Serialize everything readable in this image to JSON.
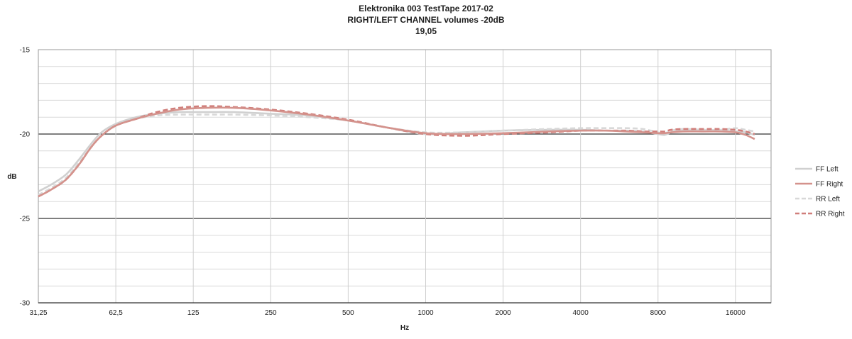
{
  "chart_data": {
    "type": "line",
    "title": "Elektronika 003 TestTape 2017-02",
    "subtitle": "RIGHT/LEFT CHANNEL volumes -20dB",
    "subtitle2": "19,05",
    "xlabel": "Hz",
    "ylabel": "dB",
    "x_scale": "log2",
    "xlim": [
      31.25,
      22000
    ],
    "ylim": [
      -30,
      -15
    ],
    "x_ticks": [
      31.25,
      62.5,
      125,
      250,
      500,
      1000,
      2000,
      4000,
      8000,
      16000
    ],
    "x_tick_labels": [
      "31,25",
      "62,5",
      "125",
      "250",
      "500",
      "1000",
      "2000",
      "4000",
      "8000",
      "16000"
    ],
    "y_ticks": [
      -15,
      -20,
      -25,
      -30
    ],
    "y_tick_labels": [
      "-15",
      "-20",
      "-25",
      "-30"
    ],
    "y_major_lines": [
      -20,
      -25
    ],
    "grid": true,
    "legend_position": "right",
    "series": [
      {
        "name": "FF Left",
        "color": "#d0d0d0",
        "dash": "solid",
        "x": [
          31.25,
          35,
          40,
          45,
          50,
          55,
          62.5,
          75,
          90,
          110,
          140,
          180,
          250,
          350,
          500,
          700,
          1000,
          1400,
          2000,
          3000,
          4000,
          5000,
          6000,
          7000,
          8000,
          8500,
          9000,
          10000,
          12000,
          14000,
          16000,
          17500,
          19000
        ],
        "y": [
          -23.4,
          -23.0,
          -22.4,
          -21.5,
          -20.6,
          -19.9,
          -19.4,
          -19.0,
          -18.8,
          -18.7,
          -18.7,
          -18.7,
          -18.8,
          -18.9,
          -19.2,
          -19.6,
          -20.0,
          -19.9,
          -19.8,
          -19.75,
          -19.75,
          -19.8,
          -19.8,
          -19.85,
          -20.0,
          -20.05,
          -19.9,
          -19.8,
          -19.8,
          -19.8,
          -19.85,
          -19.9,
          -20.05
        ]
      },
      {
        "name": "FF Right",
        "color": "#d4928c",
        "dash": "solid",
        "x": [
          31.25,
          35,
          40,
          45,
          50,
          55,
          62.5,
          75,
          90,
          110,
          140,
          180,
          250,
          350,
          500,
          700,
          1000,
          1400,
          2000,
          3000,
          4000,
          5000,
          6000,
          7000,
          8000,
          8500,
          9000,
          10000,
          12000,
          14000,
          16000,
          17500,
          19000
        ],
        "y": [
          -23.7,
          -23.3,
          -22.7,
          -21.8,
          -20.8,
          -20.1,
          -19.5,
          -19.1,
          -18.8,
          -18.55,
          -18.45,
          -18.45,
          -18.6,
          -18.85,
          -19.2,
          -19.6,
          -19.95,
          -20.0,
          -19.95,
          -19.85,
          -19.8,
          -19.8,
          -19.85,
          -19.9,
          -19.95,
          -19.95,
          -19.9,
          -19.85,
          -19.85,
          -19.85,
          -19.9,
          -20.05,
          -20.3
        ]
      },
      {
        "name": "RR Left",
        "color": "#d8d8d8",
        "dash": "dashed",
        "x": [
          31.25,
          35,
          40,
          45,
          50,
          55,
          62.5,
          75,
          90,
          110,
          140,
          180,
          250,
          350,
          500,
          700,
          1000,
          1400,
          2000,
          3000,
          4000,
          5000,
          6000,
          7000,
          8000,
          8500,
          9000,
          10000,
          12000,
          14000,
          16000,
          17500,
          19000
        ],
        "y": [
          -23.6,
          -23.2,
          -22.6,
          -21.7,
          -20.8,
          -20.1,
          -19.5,
          -19.1,
          -18.9,
          -18.85,
          -18.85,
          -18.85,
          -18.9,
          -19.0,
          -19.2,
          -19.6,
          -19.9,
          -19.9,
          -19.8,
          -19.7,
          -19.65,
          -19.65,
          -19.65,
          -19.7,
          -19.9,
          -19.95,
          -19.8,
          -19.7,
          -19.75,
          -19.75,
          -19.65,
          -19.75,
          -19.85
        ]
      },
      {
        "name": "RR Right",
        "color": "#d07e7a",
        "dash": "dashed",
        "x": [
          31.25,
          35,
          40,
          45,
          50,
          55,
          62.5,
          75,
          90,
          110,
          140,
          180,
          250,
          350,
          500,
          700,
          1000,
          1400,
          2000,
          3000,
          4000,
          5000,
          6000,
          7000,
          8000,
          8500,
          9000,
          10000,
          12000,
          14000,
          16000,
          17500,
          19000
        ],
        "y": [
          -23.7,
          -23.3,
          -22.7,
          -21.8,
          -20.8,
          -20.1,
          -19.5,
          -19.1,
          -18.7,
          -18.45,
          -18.35,
          -18.4,
          -18.55,
          -18.8,
          -19.15,
          -19.6,
          -20.0,
          -20.1,
          -20.0,
          -19.9,
          -19.8,
          -19.8,
          -19.8,
          -19.85,
          -19.85,
          -19.85,
          -19.75,
          -19.7,
          -19.7,
          -19.7,
          -19.75,
          -19.85,
          -20.0
        ]
      }
    ]
  }
}
